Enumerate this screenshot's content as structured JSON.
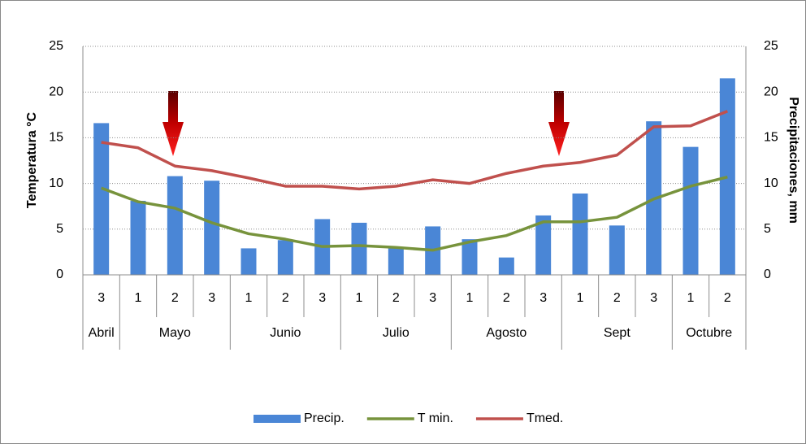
{
  "chart_data": {
    "type": "bar-line",
    "categories": [
      "3",
      "1",
      "2",
      "3",
      "1",
      "2",
      "3",
      "1",
      "2",
      "3",
      "1",
      "2",
      "3",
      "1",
      "2",
      "3",
      "1",
      "2"
    ],
    "month_labels": [
      "Abril",
      "Mayo",
      null,
      null,
      "Junio",
      null,
      null,
      "Julio",
      null,
      null,
      "Agosto",
      null,
      null,
      "Sept",
      null,
      null,
      "Octubre",
      null
    ],
    "y_label": "Temperatura °C",
    "y2_label": "Precipitaciones, mm",
    "ylim": [
      0,
      25
    ],
    "yticks": [
      0,
      5,
      10,
      15,
      20,
      25
    ],
    "y2lim": [
      0,
      25
    ],
    "y2ticks": [
      0,
      5,
      10,
      15,
      20,
      25
    ],
    "grid": true,
    "legend": "bottom",
    "series": [
      {
        "name": "Precip.",
        "type": "bar",
        "axis": "y2",
        "color": "#4a86d6",
        "values": [
          16.6,
          8.1,
          10.8,
          10.3,
          2.9,
          3.8,
          6.1,
          5.7,
          3.0,
          5.3,
          3.9,
          1.9,
          6.5,
          8.9,
          5.4,
          16.8,
          14.0,
          21.5
        ]
      },
      {
        "name": "T min.",
        "type": "line",
        "color": "#77933c",
        "values": [
          9.5,
          8.0,
          7.3,
          5.7,
          4.5,
          3.9,
          3.1,
          3.2,
          3.0,
          2.7,
          3.6,
          4.3,
          5.8,
          5.8,
          6.3,
          8.3,
          9.7,
          10.7
        ]
      },
      {
        "name": "Tmed.",
        "type": "line",
        "color": "#c0504d",
        "values": [
          14.5,
          13.9,
          11.9,
          11.4,
          10.6,
          9.7,
          9.7,
          9.4,
          9.7,
          10.4,
          10.0,
          11.1,
          11.9,
          12.3,
          13.1,
          16.2,
          16.3,
          17.9
        ]
      }
    ]
  }
}
